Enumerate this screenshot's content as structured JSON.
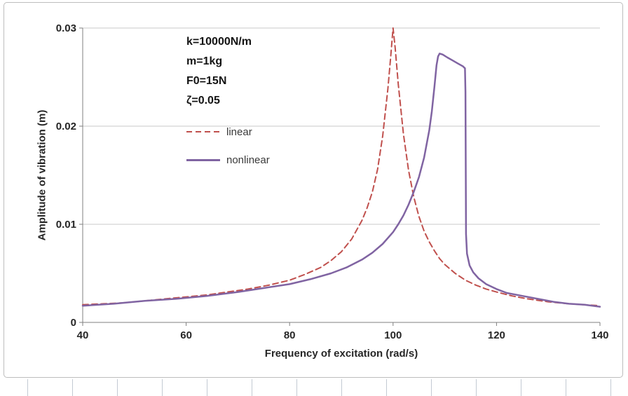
{
  "figure": {
    "background": "#FFFFFF",
    "border_color": "#BDBDBD"
  },
  "worksheet": {
    "gridline_color": "#C3CAD3",
    "first_x": 39,
    "tick_spacing": 64,
    "tick_count": 14
  },
  "chart_data": {
    "type": "line",
    "title": "",
    "xlabel": "Frequency of excitation (rad/s)",
    "ylabel": "Amplitude of vibration (m)",
    "xlim": [
      40,
      140
    ],
    "ylim": [
      0,
      0.03
    ],
    "x_ticks": [
      40,
      60,
      80,
      100,
      120,
      140
    ],
    "y_ticks": [
      0,
      0.01,
      0.02,
      0.03
    ],
    "y_tick_labels": [
      "0",
      "0.01",
      "0.02",
      "0.03"
    ],
    "grid": "horizontal-y",
    "gridline_color": "#C8C8C8",
    "axis_color": "#7F7F7F",
    "text_color": "#262626",
    "legend": {
      "position": "inside-upper-left"
    },
    "annotations": {
      "lines": [
        "k=10000N/m",
        "m=1kg",
        "F0=15N",
        "ζ=0.05"
      ]
    },
    "series": [
      {
        "name": "linear",
        "color": "#C0504D",
        "style": "dashed",
        "width": 2,
        "points": [
          [
            40,
            0.0018
          ],
          [
            44,
            0.0019
          ],
          [
            48,
            0.002
          ],
          [
            52,
            0.0022
          ],
          [
            56,
            0.0024
          ],
          [
            60,
            0.0026
          ],
          [
            64,
            0.0028
          ],
          [
            68,
            0.0031
          ],
          [
            72,
            0.0034
          ],
          [
            76,
            0.0038
          ],
          [
            80,
            0.0043
          ],
          [
            83,
            0.0049
          ],
          [
            86,
            0.0056
          ],
          [
            88,
            0.0063
          ],
          [
            90,
            0.0072
          ],
          [
            92,
            0.0085
          ],
          [
            94,
            0.0104
          ],
          [
            95,
            0.0117
          ],
          [
            96,
            0.0133
          ],
          [
            97,
            0.0156
          ],
          [
            98,
            0.019
          ],
          [
            99,
            0.0238
          ],
          [
            99.5,
            0.0268
          ],
          [
            100,
            0.03
          ],
          [
            100.4,
            0.028
          ],
          [
            101,
            0.0243
          ],
          [
            102,
            0.0192
          ],
          [
            103,
            0.0155
          ],
          [
            104,
            0.0128
          ],
          [
            105,
            0.0108
          ],
          [
            106,
            0.0093
          ],
          [
            107,
            0.0082
          ],
          [
            108,
            0.0073
          ],
          [
            109,
            0.0065
          ],
          [
            110,
            0.0059
          ],
          [
            112,
            0.005
          ],
          [
            114,
            0.0043
          ],
          [
            116,
            0.0038
          ],
          [
            118,
            0.0034
          ],
          [
            120,
            0.0031
          ],
          [
            123,
            0.0027
          ],
          [
            126,
            0.0024
          ],
          [
            130,
            0.0021
          ],
          [
            134,
            0.0019
          ],
          [
            137,
            0.0018
          ],
          [
            140,
            0.0017
          ]
        ]
      },
      {
        "name": "nonlinear",
        "color": "#8064A2",
        "style": "solid",
        "width": 2.5,
        "points": [
          [
            40,
            0.0017
          ],
          [
            46,
            0.0019
          ],
          [
            52,
            0.0022
          ],
          [
            58,
            0.0024
          ],
          [
            64,
            0.0027
          ],
          [
            70,
            0.0031
          ],
          [
            75,
            0.0035
          ],
          [
            80,
            0.0039
          ],
          [
            84,
            0.0044
          ],
          [
            88,
            0.005
          ],
          [
            91,
            0.0056
          ],
          [
            94,
            0.0064
          ],
          [
            96,
            0.0071
          ],
          [
            98,
            0.008
          ],
          [
            100,
            0.0092
          ],
          [
            101,
            0.01
          ],
          [
            102,
            0.0109
          ],
          [
            103,
            0.012
          ],
          [
            104,
            0.0133
          ],
          [
            105,
            0.0148
          ],
          [
            106,
            0.0168
          ],
          [
            107,
            0.0196
          ],
          [
            107.5,
            0.0215
          ],
          [
            108,
            0.024
          ],
          [
            108.4,
            0.0262
          ],
          [
            108.7,
            0.0271
          ],
          [
            109,
            0.0274
          ],
          [
            109.6,
            0.0273
          ],
          [
            110.5,
            0.027
          ],
          [
            111.5,
            0.0267
          ],
          [
            112.5,
            0.0264
          ],
          [
            113.5,
            0.0261
          ],
          [
            113.9,
            0.0259
          ],
          [
            114,
            0.0235
          ],
          [
            114.1,
            0.009
          ],
          [
            114.3,
            0.007
          ],
          [
            114.8,
            0.0058
          ],
          [
            115.5,
            0.0051
          ],
          [
            116.5,
            0.0045
          ],
          [
            118,
            0.0039
          ],
          [
            120,
            0.0034
          ],
          [
            122,
            0.003
          ],
          [
            125,
            0.0027
          ],
          [
            128,
            0.0024
          ],
          [
            131,
            0.0021
          ],
          [
            134,
            0.0019
          ],
          [
            137,
            0.0018
          ],
          [
            140,
            0.0016
          ]
        ]
      }
    ]
  }
}
